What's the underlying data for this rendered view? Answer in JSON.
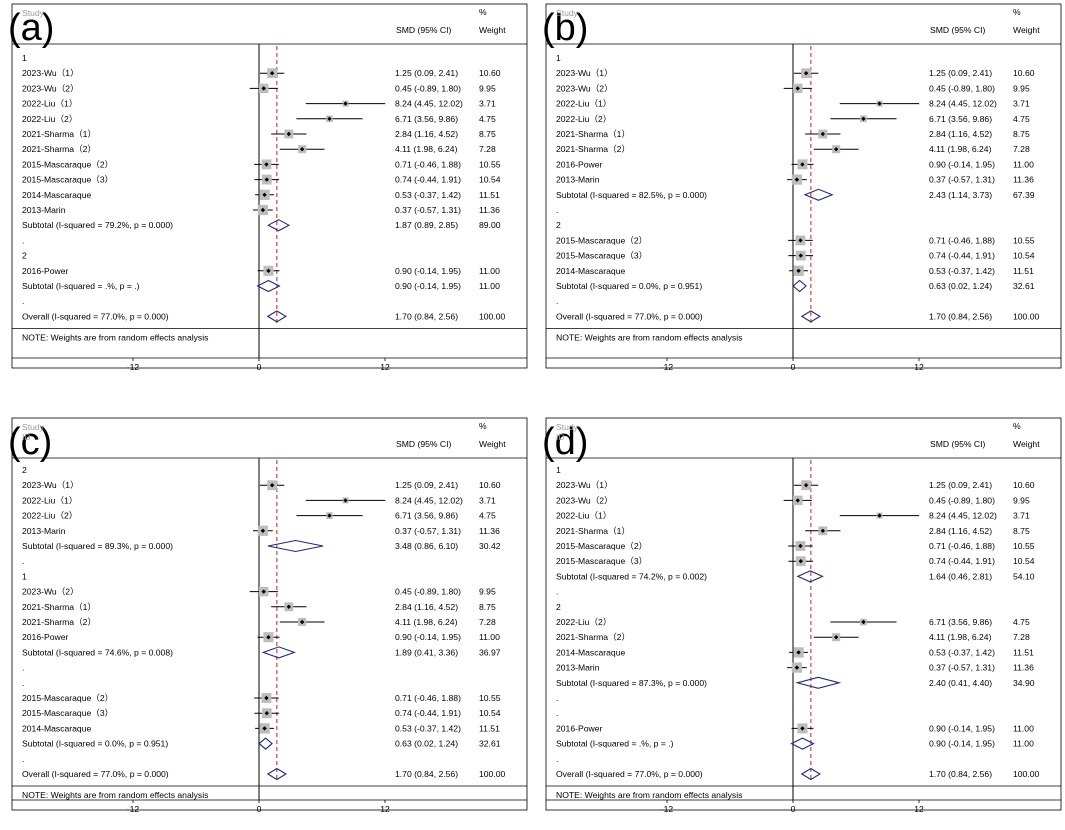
{
  "header": {
    "study": "Study",
    "id": "ID",
    "smd": "SMD (95% CI)",
    "pct": "%",
    "weight": "Weight"
  },
  "note": "NOTE: Weights are from random effects analysis",
  "colors": {
    "null_line": "#000000",
    "overall_line": "#c0392b",
    "diamond": "#1f2a7a",
    "box": "#bdbdbd"
  },
  "chart_data": [
    {
      "type": "forest",
      "panel": "(a)",
      "show_id_header": false,
      "xticks": [
        -12,
        0,
        12
      ],
      "overall_smd": 1.7,
      "rows": [
        {
          "kind": "group",
          "label": "1"
        },
        {
          "kind": "study",
          "label": "2023-Wu（1）",
          "smd": 1.25,
          "lo": 0.09,
          "hi": 2.41,
          "ci": "1.25 (0.09, 2.41)",
          "weight": "10.60"
        },
        {
          "kind": "study",
          "label": "2023-Wu（2）",
          "smd": 0.45,
          "lo": -0.89,
          "hi": 1.8,
          "ci": "0.45 (-0.89, 1.80)",
          "weight": "9.95"
        },
        {
          "kind": "study",
          "label": "2022-Liu（1）",
          "smd": 8.24,
          "lo": 4.45,
          "hi": 12.02,
          "ci": "8.24 (4.45, 12.02)",
          "weight": "3.71"
        },
        {
          "kind": "study",
          "label": "2022-Liu（2）",
          "smd": 6.71,
          "lo": 3.56,
          "hi": 9.86,
          "ci": "6.71 (3.56, 9.86)",
          "weight": "4.75"
        },
        {
          "kind": "study",
          "label": "2021-Sharma（1）",
          "smd": 2.84,
          "lo": 1.16,
          "hi": 4.52,
          "ci": "2.84 (1.16, 4.52)",
          "weight": "8.75"
        },
        {
          "kind": "study",
          "label": "2021-Sharma（2）",
          "smd": 4.11,
          "lo": 1.98,
          "hi": 6.24,
          "ci": "4.11 (1.98, 6.24)",
          "weight": "7.28"
        },
        {
          "kind": "study",
          "label": "2015-Mascaraque（2）",
          "smd": 0.71,
          "lo": -0.46,
          "hi": 1.88,
          "ci": "0.71 (-0.46, 1.88)",
          "weight": "10.55"
        },
        {
          "kind": "study",
          "label": "2015-Mascaraque（3）",
          "smd": 0.74,
          "lo": -0.44,
          "hi": 1.91,
          "ci": "0.74 (-0.44, 1.91)",
          "weight": "10.54"
        },
        {
          "kind": "study",
          "label": "2014-Mascaraque",
          "smd": 0.53,
          "lo": -0.37,
          "hi": 1.42,
          "ci": "0.53 (-0.37, 1.42)",
          "weight": "11.51"
        },
        {
          "kind": "study",
          "label": "2013-Marin",
          "smd": 0.37,
          "lo": -0.57,
          "hi": 1.31,
          "ci": "0.37 (-0.57, 1.31)",
          "weight": "11.36"
        },
        {
          "kind": "subtotal",
          "label": "Subtotal  (I-squared = 79.2%, p = 0.000)",
          "smd": 1.87,
          "lo": 0.89,
          "hi": 2.85,
          "ci": "1.87 (0.89, 2.85)",
          "weight": "89.00"
        },
        {
          "kind": "dot",
          "label": "."
        },
        {
          "kind": "group",
          "label": "2"
        },
        {
          "kind": "study",
          "label": "2016-Power",
          "smd": 0.9,
          "lo": -0.14,
          "hi": 1.95,
          "ci": "0.90 (-0.14, 1.95)",
          "weight": "11.00"
        },
        {
          "kind": "subtotal",
          "label": "Subtotal  (I-squared = .%, p = .)",
          "smd": 0.9,
          "lo": -0.14,
          "hi": 1.95,
          "ci": "0.90 (-0.14, 1.95)",
          "weight": "11.00"
        },
        {
          "kind": "dot",
          "label": "."
        },
        {
          "kind": "overall",
          "label": "Overall  (I-squared = 77.0%, p = 0.000)",
          "smd": 1.7,
          "lo": 0.84,
          "hi": 2.56,
          "ci": "1.70 (0.84, 2.56)",
          "weight": "100.00"
        }
      ]
    },
    {
      "type": "forest",
      "panel": "(b)",
      "show_id_header": false,
      "xticks": [
        -12,
        0,
        12
      ],
      "overall_smd": 1.7,
      "rows": [
        {
          "kind": "group",
          "label": "1"
        },
        {
          "kind": "study",
          "label": "2023-Wu（1）",
          "smd": 1.25,
          "lo": 0.09,
          "hi": 2.41,
          "ci": "1.25 (0.09, 2.41)",
          "weight": "10.60"
        },
        {
          "kind": "study",
          "label": "2023-Wu（2）",
          "smd": 0.45,
          "lo": -0.89,
          "hi": 1.8,
          "ci": "0.45 (-0.89, 1.80)",
          "weight": "9.95"
        },
        {
          "kind": "study",
          "label": "2022-Liu（1）",
          "smd": 8.24,
          "lo": 4.45,
          "hi": 12.02,
          "ci": "8.24 (4.45, 12.02)",
          "weight": "3.71"
        },
        {
          "kind": "study",
          "label": "2022-Liu（2）",
          "smd": 6.71,
          "lo": 3.56,
          "hi": 9.86,
          "ci": "6.71 (3.56, 9.86)",
          "weight": "4.75"
        },
        {
          "kind": "study",
          "label": "2021-Sharma（1）",
          "smd": 2.84,
          "lo": 1.16,
          "hi": 4.52,
          "ci": "2.84 (1.16, 4.52)",
          "weight": "8.75"
        },
        {
          "kind": "study",
          "label": "2021-Sharma（2）",
          "smd": 4.11,
          "lo": 1.98,
          "hi": 6.24,
          "ci": "4.11 (1.98, 6.24)",
          "weight": "7.28"
        },
        {
          "kind": "study",
          "label": "2016-Power",
          "smd": 0.9,
          "lo": -0.14,
          "hi": 1.95,
          "ci": "0.90 (-0.14, 1.95)",
          "weight": "11.00"
        },
        {
          "kind": "study",
          "label": "2013-Marin",
          "smd": 0.37,
          "lo": -0.57,
          "hi": 1.31,
          "ci": "0.37 (-0.57, 1.31)",
          "weight": "11.36"
        },
        {
          "kind": "subtotal",
          "label": "Subtotal  (I-squared = 82.5%, p = 0.000)",
          "smd": 2.43,
          "lo": 1.14,
          "hi": 3.73,
          "ci": "2.43 (1.14, 3.73)",
          "weight": "67.39"
        },
        {
          "kind": "dot",
          "label": "."
        },
        {
          "kind": "group",
          "label": "2"
        },
        {
          "kind": "study",
          "label": "2015-Mascaraque（2）",
          "smd": 0.71,
          "lo": -0.46,
          "hi": 1.88,
          "ci": "0.71 (-0.46, 1.88)",
          "weight": "10.55"
        },
        {
          "kind": "study",
          "label": "2015-Mascaraque（3）",
          "smd": 0.74,
          "lo": -0.44,
          "hi": 1.91,
          "ci": "0.74 (-0.44, 1.91)",
          "weight": "10.54"
        },
        {
          "kind": "study",
          "label": "2014-Mascaraque",
          "smd": 0.53,
          "lo": -0.37,
          "hi": 1.42,
          "ci": "0.53 (-0.37, 1.42)",
          "weight": "11.51"
        },
        {
          "kind": "subtotal",
          "label": "Subtotal  (I-squared = 0.0%, p = 0.951)",
          "smd": 0.63,
          "lo": 0.02,
          "hi": 1.24,
          "ci": "0.63 (0.02, 1.24)",
          "weight": "32.61"
        },
        {
          "kind": "dot",
          "label": "."
        },
        {
          "kind": "overall",
          "label": "Overall  (I-squared = 77.0%, p = 0.000)",
          "smd": 1.7,
          "lo": 0.84,
          "hi": 2.56,
          "ci": "1.70 (0.84, 2.56)",
          "weight": "100.00"
        }
      ]
    },
    {
      "type": "forest",
      "panel": "(c)",
      "show_id_header": true,
      "xticks": [
        -12,
        0,
        12
      ],
      "overall_smd": 1.7,
      "rows": [
        {
          "kind": "group",
          "label": "2"
        },
        {
          "kind": "study",
          "label": "2023-Wu（1）",
          "smd": 1.25,
          "lo": 0.09,
          "hi": 2.41,
          "ci": "1.25 (0.09, 2.41)",
          "weight": "10.60"
        },
        {
          "kind": "study",
          "label": "2022-Liu（1）",
          "smd": 8.24,
          "lo": 4.45,
          "hi": 12.02,
          "ci": "8.24 (4.45, 12.02)",
          "weight": "3.71"
        },
        {
          "kind": "study",
          "label": "2022-Liu（2）",
          "smd": 6.71,
          "lo": 3.56,
          "hi": 9.86,
          "ci": "6.71 (3.56, 9.86)",
          "weight": "4.75"
        },
        {
          "kind": "study",
          "label": "2013-Marin",
          "smd": 0.37,
          "lo": -0.57,
          "hi": 1.31,
          "ci": "0.37 (-0.57, 1.31)",
          "weight": "11.36"
        },
        {
          "kind": "subtotal",
          "label": "Subtotal  (I-squared = 89.3%, p = 0.000)",
          "smd": 3.48,
          "lo": 0.86,
          "hi": 6.1,
          "ci": "3.48 (0.86, 6.10)",
          "weight": "30.42"
        },
        {
          "kind": "dot",
          "label": "."
        },
        {
          "kind": "group",
          "label": "1"
        },
        {
          "kind": "study",
          "label": "2023-Wu（2）",
          "smd": 0.45,
          "lo": -0.89,
          "hi": 1.8,
          "ci": "0.45 (-0.89, 1.80)",
          "weight": "9.95"
        },
        {
          "kind": "study",
          "label": "2021-Sharma（1）",
          "smd": 2.84,
          "lo": 1.16,
          "hi": 4.52,
          "ci": "2.84 (1.16, 4.52)",
          "weight": "8.75"
        },
        {
          "kind": "study",
          "label": "2021-Sharma（2）",
          "smd": 4.11,
          "lo": 1.98,
          "hi": 6.24,
          "ci": "4.11 (1.98, 6.24)",
          "weight": "7.28"
        },
        {
          "kind": "study",
          "label": "2016-Power",
          "smd": 0.9,
          "lo": -0.14,
          "hi": 1.95,
          "ci": "0.90 (-0.14, 1.95)",
          "weight": "11.00"
        },
        {
          "kind": "subtotal",
          "label": "Subtotal  (I-squared = 74.6%, p = 0.008)",
          "smd": 1.89,
          "lo": 0.41,
          "hi": 3.36,
          "ci": "1.89 (0.41, 3.36)",
          "weight": "36.97"
        },
        {
          "kind": "dot",
          "label": "."
        },
        {
          "kind": "dot",
          "label": "."
        },
        {
          "kind": "study",
          "label": "2015-Mascaraque（2）",
          "smd": 0.71,
          "lo": -0.46,
          "hi": 1.88,
          "ci": "0.71 (-0.46, 1.88)",
          "weight": "10.55"
        },
        {
          "kind": "study",
          "label": "2015-Mascaraque（3）",
          "smd": 0.74,
          "lo": -0.44,
          "hi": 1.91,
          "ci": "0.74 (-0.44, 1.91)",
          "weight": "10.54"
        },
        {
          "kind": "study",
          "label": "2014-Mascaraque",
          "smd": 0.53,
          "lo": -0.37,
          "hi": 1.42,
          "ci": "0.53 (-0.37, 1.42)",
          "weight": "11.51"
        },
        {
          "kind": "subtotal",
          "label": "Subtotal  (I-squared = 0.0%, p = 0.951)",
          "smd": 0.63,
          "lo": 0.02,
          "hi": 1.24,
          "ci": "0.63 (0.02, 1.24)",
          "weight": "32.61"
        },
        {
          "kind": "dot",
          "label": "."
        },
        {
          "kind": "overall",
          "label": "Overall  (I-squared = 77.0%, p = 0.000)",
          "smd": 1.7,
          "lo": 0.84,
          "hi": 2.56,
          "ci": "1.70 (0.84, 2.56)",
          "weight": "100.00"
        }
      ]
    },
    {
      "type": "forest",
      "panel": "(d)",
      "show_id_header": true,
      "xticks": [
        -12,
        0,
        12
      ],
      "overall_smd": 1.7,
      "rows": [
        {
          "kind": "group",
          "label": "1"
        },
        {
          "kind": "study",
          "label": "2023-Wu（1）",
          "smd": 1.25,
          "lo": 0.09,
          "hi": 2.41,
          "ci": "1.25 (0.09, 2.41)",
          "weight": "10.60"
        },
        {
          "kind": "study",
          "label": "2023-Wu（2）",
          "smd": 0.45,
          "lo": -0.89,
          "hi": 1.8,
          "ci": "0.45 (-0.89, 1.80)",
          "weight": "9.95"
        },
        {
          "kind": "study",
          "label": "2022-Liu（1）",
          "smd": 8.24,
          "lo": 4.45,
          "hi": 12.02,
          "ci": "8.24 (4.45, 12.02)",
          "weight": "3.71"
        },
        {
          "kind": "study",
          "label": "2021-Sharma（1）",
          "smd": 2.84,
          "lo": 1.16,
          "hi": 4.52,
          "ci": "2.84 (1.16, 4.52)",
          "weight": "8.75"
        },
        {
          "kind": "study",
          "label": "2015-Mascaraque（2）",
          "smd": 0.71,
          "lo": -0.46,
          "hi": 1.88,
          "ci": "0.71 (-0.46, 1.88)",
          "weight": "10.55"
        },
        {
          "kind": "study",
          "label": "2015-Mascaraque（3）",
          "smd": 0.74,
          "lo": -0.44,
          "hi": 1.91,
          "ci": "0.74 (-0.44, 1.91)",
          "weight": "10.54"
        },
        {
          "kind": "subtotal",
          "label": "Subtotal  (I-squared = 74.2%, p = 0.002)",
          "smd": 1.64,
          "lo": 0.46,
          "hi": 2.81,
          "ci": "1.64 (0.46, 2.81)",
          "weight": "54.10"
        },
        {
          "kind": "dot",
          "label": "."
        },
        {
          "kind": "group",
          "label": "2"
        },
        {
          "kind": "study",
          "label": "2022-Liu（2）",
          "smd": 6.71,
          "lo": 3.56,
          "hi": 9.86,
          "ci": "6.71 (3.56, 9.86)",
          "weight": "4.75"
        },
        {
          "kind": "study",
          "label": "2021-Sharma（2）",
          "smd": 4.11,
          "lo": 1.98,
          "hi": 6.24,
          "ci": "4.11 (1.98, 6.24)",
          "weight": "7.28"
        },
        {
          "kind": "study",
          "label": "2014-Mascaraque",
          "smd": 0.53,
          "lo": -0.37,
          "hi": 1.42,
          "ci": "0.53 (-0.37, 1.42)",
          "weight": "11.51"
        },
        {
          "kind": "study",
          "label": "2013-Marin",
          "smd": 0.37,
          "lo": -0.57,
          "hi": 1.31,
          "ci": "0.37 (-0.57, 1.31)",
          "weight": "11.36"
        },
        {
          "kind": "subtotal",
          "label": "Subtotal  (I-squared = 87.3%, p = 0.000)",
          "smd": 2.4,
          "lo": 0.41,
          "hi": 4.4,
          "ci": "2.40 (0.41, 4.40)",
          "weight": "34.90"
        },
        {
          "kind": "dot",
          "label": "."
        },
        {
          "kind": "dot",
          "label": "."
        },
        {
          "kind": "study",
          "label": "2016-Power",
          "smd": 0.9,
          "lo": -0.14,
          "hi": 1.95,
          "ci": "0.90 (-0.14, 1.95)",
          "weight": "11.00"
        },
        {
          "kind": "subtotal",
          "label": "Subtotal  (I-squared = .%, p = .)",
          "smd": 0.9,
          "lo": -0.14,
          "hi": 1.95,
          "ci": "0.90 (-0.14, 1.95)",
          "weight": "11.00"
        },
        {
          "kind": "dot",
          "label": "."
        },
        {
          "kind": "overall",
          "label": "Overall  (I-squared = 77.0%, p = 0.000)",
          "smd": 1.7,
          "lo": 0.84,
          "hi": 2.56,
          "ci": "1.70 (0.84, 2.56)",
          "weight": "100.00"
        }
      ]
    }
  ]
}
